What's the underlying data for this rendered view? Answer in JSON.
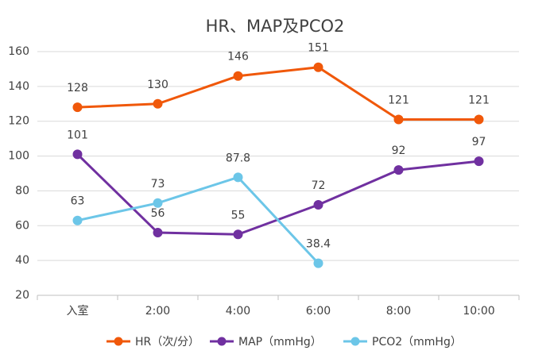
{
  "chart_data": {
    "type": "line",
    "title": "HR、MAP及PCO2",
    "categories": [
      "入室",
      "2:00",
      "4:00",
      "6:00",
      "8:00",
      "10:00"
    ],
    "series": [
      {
        "name": "HR（次/分）",
        "color": "#f0580a",
        "values": [
          128,
          130,
          146,
          151,
          121,
          121
        ]
      },
      {
        "name": "MAP（mmHg）",
        "color": "#7030a0",
        "values": [
          101,
          56,
          55,
          72,
          92,
          97
        ]
      },
      {
        "name": "PCO2（mmHg）",
        "color": "#6cc6e8",
        "values": [
          63,
          73,
          87.8,
          38.4,
          null,
          null
        ]
      }
    ],
    "ylim": [
      20,
      160
    ],
    "yticks": [
      20,
      40,
      60,
      80,
      100,
      120,
      140,
      160
    ],
    "grid": true,
    "legend": "bottom"
  }
}
